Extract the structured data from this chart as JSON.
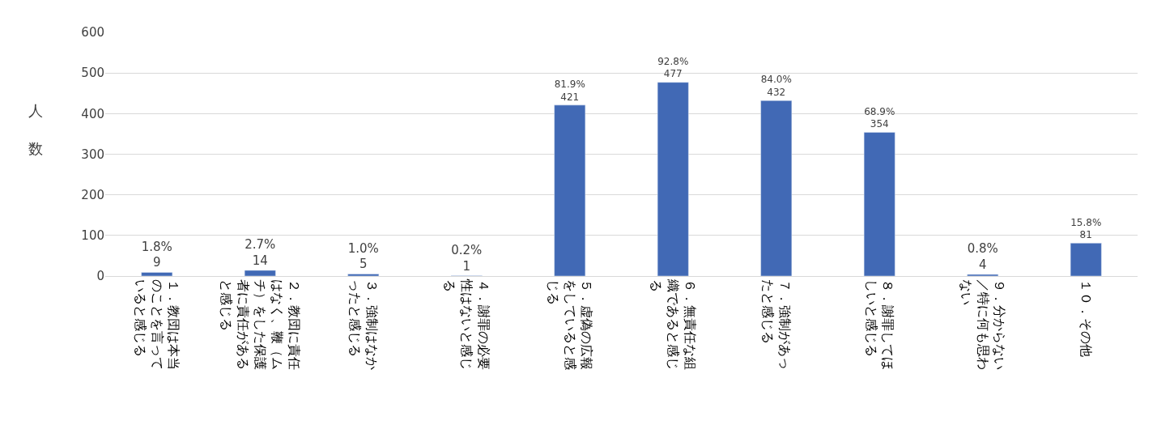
{
  "chart_data": {
    "type": "bar",
    "ylabel": "人数",
    "categories": [
      "１．教団は本当のことを言っていると感じる",
      "２．教団に責任はなく、鞭（ムチ）をした保護者に責任があると感じる",
      "３．強制はなかったと感じる",
      "４．謝罪の必要性はないと感じる",
      "５．虚偽の広報をしていると感じる",
      "６．無責任な組織であると感じる",
      "７．強制があったと感じる",
      "８．謝罪してほしいと感じる",
      "９．分からない／特に何も思わない",
      "１０．その他"
    ],
    "values": [
      9,
      14,
      5,
      1,
      421,
      477,
      432,
      354,
      4,
      81
    ],
    "value_labels": [
      "1.8%\n9",
      "2.7%\n14",
      "1.0%\n5",
      "0.2%\n1",
      "81.9%\n421",
      "92.8%\n477",
      "84.0%\n432",
      "68.9%\n354",
      "0.8%\n4",
      "15.8%\n81"
    ],
    "color": "#4169b5",
    "ylim": [
      0,
      600
    ],
    "yticks": [
      0,
      100,
      200,
      300,
      400,
      500,
      600
    ],
    "grid": "y"
  }
}
